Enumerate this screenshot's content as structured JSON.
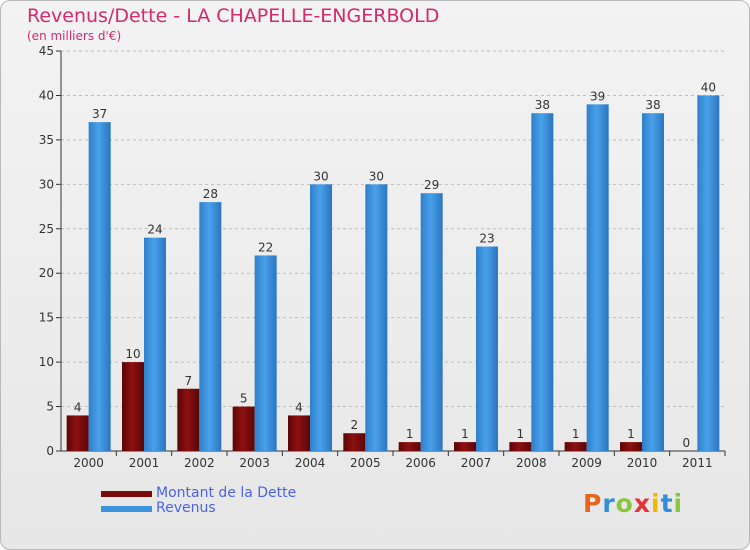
{
  "title": "Revenus/Dette - LA CHAPELLE-ENGERBOLD",
  "subtitle": "(en milliers d'€)",
  "logo": "Proxiti",
  "colors": {
    "dette": "#7a0b0b",
    "revenus": "#3b92dd",
    "axis": "#333333",
    "grid": "#bdbdbd"
  },
  "chart_data": {
    "type": "bar",
    "categories": [
      "2000",
      "2001",
      "2002",
      "2003",
      "2004",
      "2005",
      "2006",
      "2007",
      "2008",
      "2009",
      "2010",
      "2011"
    ],
    "series": [
      {
        "name": "Montant de la Dette",
        "values": [
          4,
          10,
          7,
          5,
          4,
          2,
          1,
          1,
          1,
          1,
          1,
          0
        ]
      },
      {
        "name": "Revenus",
        "values": [
          37,
          24,
          28,
          22,
          30,
          30,
          29,
          23,
          38,
          39,
          38,
          40
        ]
      }
    ],
    "ylim": [
      0,
      45
    ],
    "yticks": [
      0,
      5,
      10,
      15,
      20,
      25,
      30,
      35,
      40,
      45
    ],
    "grid": "dashed-horizontal",
    "legend": "bottom-left"
  }
}
